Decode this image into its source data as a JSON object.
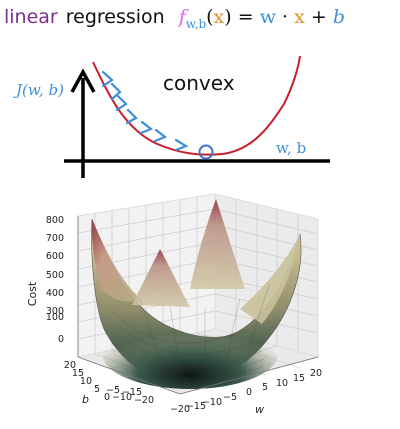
{
  "header": {
    "word1": "linear",
    "word2": "regression",
    "formula": {
      "f": "f",
      "sub": "w,b",
      "open": "(",
      "x": "x",
      "close": ")",
      "eq": "=",
      "w": "w",
      "dot": "·",
      "x2": "x",
      "plus": "+",
      "b": "b"
    }
  },
  "sketch": {
    "y_label": "J(w, b)",
    "x_label": "w, b",
    "annotation": "convex"
  },
  "surface_plot": {
    "z_label": "Cost",
    "w_label": "w",
    "b_label": "b",
    "z_ticks": [
      "800",
      "700",
      "600",
      "500",
      "400",
      "300",
      "200",
      "100",
      "0"
    ],
    "w_ticks": [
      "−20",
      "−15",
      "−10",
      "−5",
      "0",
      "5",
      "10",
      "15",
      "20"
    ],
    "b_ticks": [
      "20",
      "15",
      "10",
      "5",
      "0",
      "−5",
      "−10",
      "−15",
      "−20"
    ]
  },
  "colors": {
    "title_purple": "#7a2f8c",
    "f_pink": "#d46be0",
    "w_blue": "#3f8fd8",
    "x_orange": "#e0912f",
    "curve_red": "#c8202a",
    "arrow_blue": "#3f8fd8"
  }
}
